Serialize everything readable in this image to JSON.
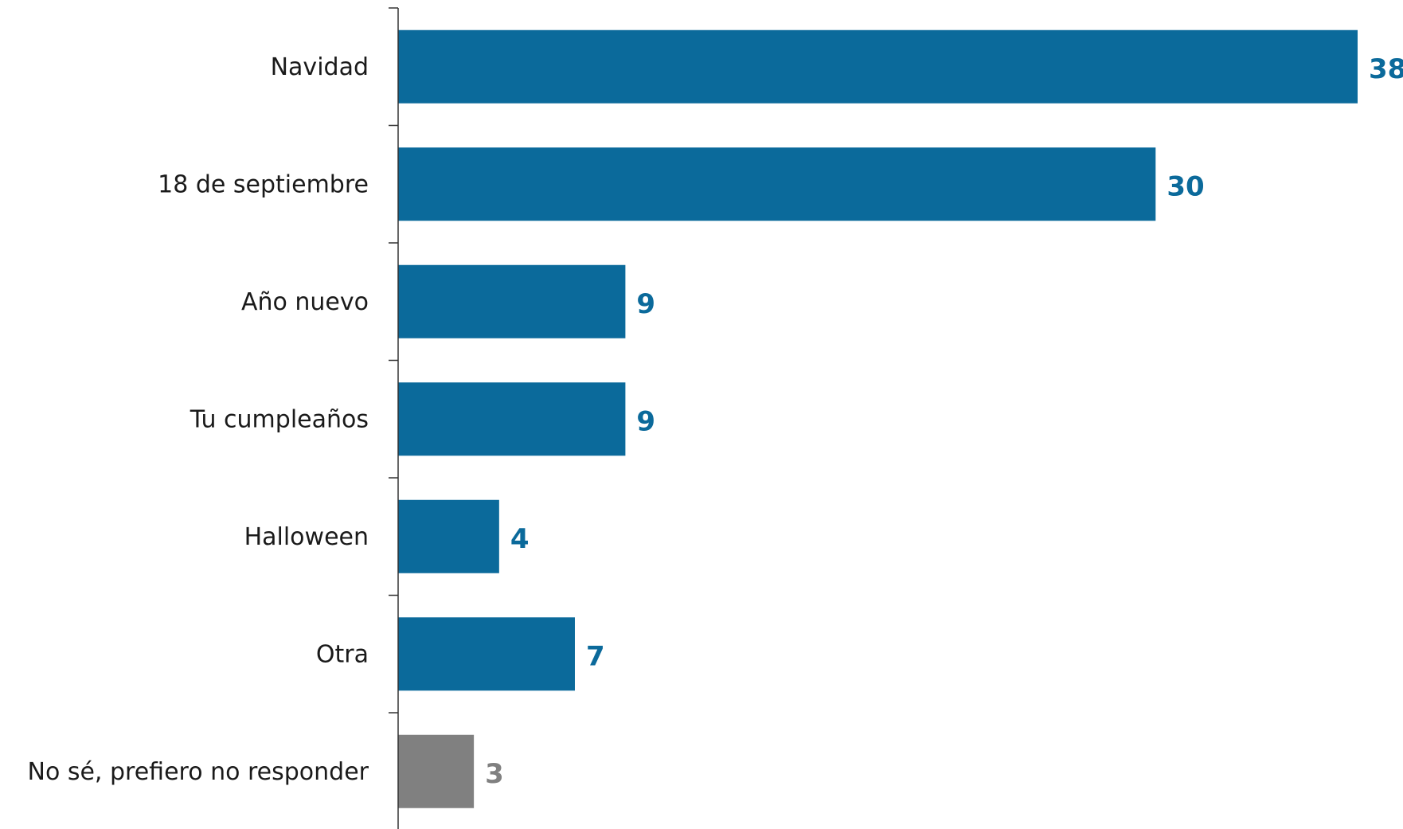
{
  "chart_data": {
    "type": "bar",
    "orientation": "horizontal",
    "title": "",
    "xlabel": "",
    "ylabel": "",
    "categories": [
      "Navidad",
      "18 de septiembre",
      "Año nuevo",
      "Tu cumpleaños",
      "Halloween",
      "Otra",
      "No sé, prefiero no responder"
    ],
    "values": [
      38,
      30,
      9,
      9,
      4,
      7,
      3
    ],
    "value_labels": [
      "38",
      "30",
      "9",
      "9",
      "4",
      "7",
      "3"
    ],
    "colors": [
      "#0b6a9b",
      "#0b6a9b",
      "#0b6a9b",
      "#0b6a9b",
      "#0b6a9b",
      "#0b6a9b",
      "#808080"
    ],
    "xlim": [
      0,
      38
    ],
    "grid": false,
    "legend": "none"
  }
}
